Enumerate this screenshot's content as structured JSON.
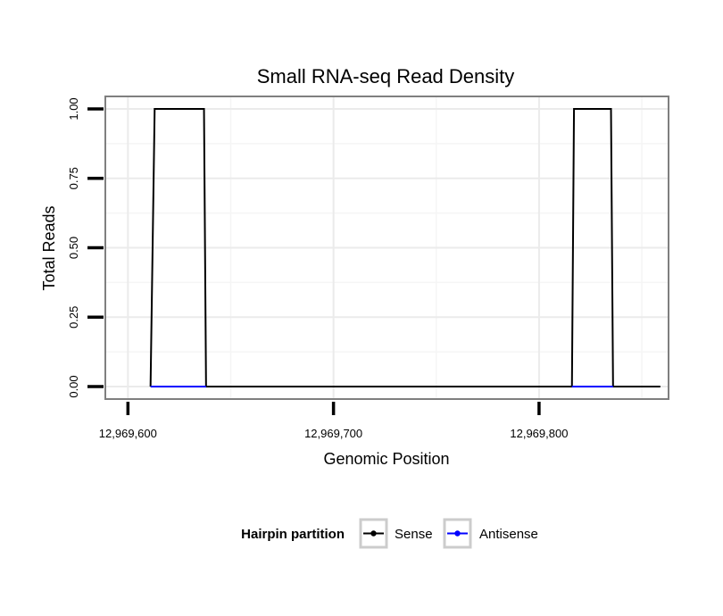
{
  "chart_data": {
    "type": "line",
    "title": "Small RNA-seq Read Density",
    "xlabel": "Genomic Position",
    "ylabel": "Total Reads",
    "xlim": [
      12969589,
      12969863
    ],
    "ylim": [
      -0.045,
      1.045
    ],
    "xticks": [
      12969600,
      12969700,
      12969800
    ],
    "xtick_labels": [
      "12,969,600",
      "12,969,700",
      "12,969,800"
    ],
    "yticks": [
      0,
      0.25,
      0.5,
      0.75,
      1
    ],
    "ytick_labels": [
      "0.00",
      "0.25",
      "0.50",
      "0.75",
      "1.00"
    ],
    "grid": true,
    "legend_position": "bottom",
    "legend_title": "Hairpin partition",
    "series": [
      {
        "name": "Sense",
        "color": "#000000",
        "x": [
          12969611,
          12969613,
          12969637,
          12969638,
          12969816,
          12969817,
          12969835,
          12969836,
          12969859
        ],
        "y": [
          0,
          1,
          1,
          0,
          0,
          1,
          1,
          0,
          0
        ]
      },
      {
        "name": "Antisense",
        "color": "#0000ff",
        "x": [
          12969611,
          12969638,
          12969816,
          12969836
        ],
        "y": [
          0,
          0,
          0,
          0
        ],
        "segments": [
          [
            0,
            1
          ],
          [
            2,
            3
          ]
        ]
      }
    ]
  }
}
